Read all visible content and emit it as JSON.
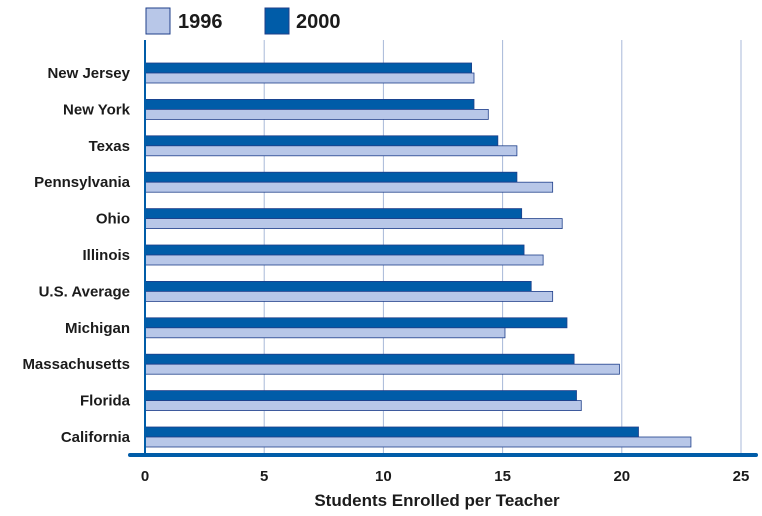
{
  "chart_data": {
    "type": "bar",
    "orientation": "horizontal",
    "categories": [
      "New Jersey",
      "New York",
      "Texas",
      "Pennsylvania",
      "Ohio",
      "Illinois",
      "U.S. Average",
      "Michigan",
      "Massachusetts",
      "Florida",
      "California"
    ],
    "series": [
      {
        "name": "1996",
        "color": "#b8c7e8",
        "values": [
          13.8,
          14.4,
          15.6,
          17.1,
          17.5,
          16.7,
          17.1,
          15.1,
          19.9,
          18.3,
          22.9
        ]
      },
      {
        "name": "2000",
        "color": "#005ca8",
        "values": [
          13.7,
          13.8,
          14.8,
          15.6,
          15.8,
          15.9,
          16.2,
          17.7,
          18.0,
          18.1,
          20.7
        ]
      }
    ],
    "x_ticks": [
      "0",
      "5",
      "10",
      "15",
      "20",
      "25"
    ],
    "xlim": [
      0,
      25
    ],
    "xlabel": "Students Enrolled per Teacher",
    "ylabel": "",
    "title": "",
    "grid": true,
    "legend_position": "top-left",
    "axis_color": "#005ca8",
    "grid_color": "#a8b8d8",
    "bar_outline_color": "#1f3f8a"
  }
}
